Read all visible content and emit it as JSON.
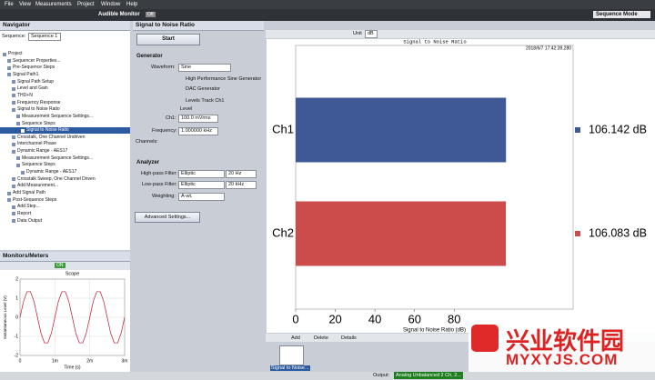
{
  "menu": [
    "File",
    "View",
    "Measurements",
    "Project",
    "Window",
    "Help"
  ],
  "toolbar": {
    "audible_monitor": "Audible Monitor",
    "monitor_state": "Off",
    "mode": "Sequence Mode"
  },
  "navigator": {
    "title": "Navigator",
    "sequence_label": "Sequence:",
    "sequence": "Sequence 1",
    "tree": [
      "Project",
      "Sequencer Properties...",
      "Pre-Sequence Steps",
      "Signal Path1",
      "Signal Path Setup",
      "Level and Gain",
      "THD+N",
      "Frequency Response",
      "Signal to Noise Ratio",
      "Measurement Sequence Settings...",
      "Sequence Steps",
      "Signal to Noise Ratio",
      "Crosstalk, One Channel Undriven",
      "Interchannel Phase",
      "Dynamic Range - AES17",
      "Measurement Sequence Settings...",
      "Sequence Steps",
      "Dynamic Range - AES17",
      "Crosstalk Sweep, One Channel Driven",
      "Add Measurement...",
      "Add Signal Path",
      "Post-Sequence Steps",
      "Add Step...",
      "Report",
      "Data Output"
    ]
  },
  "monitors": {
    "title": "Monitors/Meters",
    "state": "ON"
  },
  "panel": {
    "title": "Signal to Noise Ratio",
    "start": "Start",
    "generator": "Generator",
    "waveform_label": "Waveform:",
    "waveform": "Sine",
    "hp_sine": "High Performance Sine Generator",
    "dac": "DAC Generator",
    "levels_track": "Levels Track Ch1",
    "level": "Level",
    "ch1_label": "Ch1:",
    "ch1_level": "100.0 mVrms",
    "freq_label": "Frequency:",
    "freq": "1.000000 kHz",
    "channels": "Channels:",
    "analyzer": "Analyzer",
    "hpf_label": "High-pass Filter:",
    "hpf": "Elliptic",
    "hpf_freq": "20 Hz",
    "lpf_label": "Low-pass Filter:",
    "lpf": "Elliptic",
    "lpf_freq": "20 kHz",
    "weighting_label": "Weighting:",
    "weighting": "A-wt.",
    "advanced": "Advanced Settings..."
  },
  "result": {
    "unit_label": "Unit",
    "unit": "dB",
    "add": "Add",
    "delete": "Delete",
    "details": "Details",
    "thumbnail": "Signal to Noise..."
  },
  "status": {
    "output_label": "Output:",
    "output": "Analog Unbalanced 2 Ch, 2..."
  },
  "watermark": {
    "name": "兴业软件园",
    "site": "MYXYJS.COM"
  },
  "chart_data": [
    {
      "type": "bar",
      "title": "Signal to Noise Ratio",
      "subtitle": "2018/6/7 17:42:39.280",
      "xlabel": "Signal to Noise Ratio (dB)",
      "categories": [
        "Ch1",
        "Ch2"
      ],
      "values": [
        106.142,
        106.083
      ],
      "value_labels": [
        "106.142 dB",
        "106.083 dB"
      ],
      "colors": [
        "#3f5896",
        "#cc4b4b"
      ],
      "xlim": [
        0,
        140
      ],
      "xticks": [
        0,
        20,
        40,
        60,
        80
      ]
    },
    {
      "type": "line",
      "title": "Scope",
      "xlabel": "Time (s)",
      "ylabel": "Instantaneous Level (V)",
      "x": [
        0,
        0.0001,
        0.0002,
        0.0003,
        0.0004,
        0.0005,
        0.0006,
        0.0007,
        0.0008,
        0.0009,
        0.001,
        0.0011,
        0.0012,
        0.0013,
        0.0014,
        0.0015,
        0.0016,
        0.0017,
        0.0018,
        0.0019,
        0.002,
        0.0021,
        0.0022,
        0.0023,
        0.0024,
        0.0025,
        0.0026,
        0.0027,
        0.0028,
        0.0029,
        0.003
      ],
      "series": [
        {
          "color": "#c0304a",
          "values": [
            0,
            0.83,
            1.34,
            1.34,
            0.83,
            0,
            -0.83,
            -1.34,
            -1.34,
            -0.83,
            0,
            0.83,
            1.34,
            1.34,
            0.83,
            0,
            -0.83,
            -1.34,
            -1.34,
            -0.83,
            0,
            0.83,
            1.34,
            1.34,
            0.83,
            0,
            -0.83,
            -1.34,
            -1.34,
            -0.83,
            0
          ]
        }
      ],
      "xlim": [
        0,
        0.003
      ],
      "xticks": [
        0,
        {
          "value": 0.001,
          "label": "1m"
        },
        {
          "value": 0.002,
          "label": "2m"
        },
        {
          "value": 0.003,
          "label": "3m"
        }
      ],
      "ylim": [
        -2,
        2
      ],
      "yticks": [
        -2,
        -1,
        0,
        1,
        2
      ],
      "grid": true
    }
  ]
}
